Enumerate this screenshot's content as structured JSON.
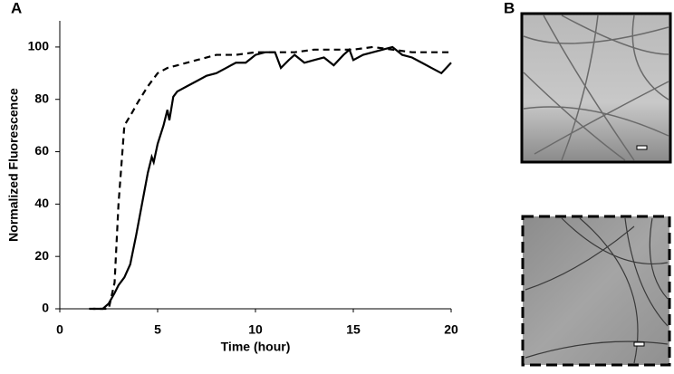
{
  "panel_labels": {
    "a": "A",
    "b": "B"
  },
  "chart_data": {
    "type": "line",
    "xlabel": "Time (hour)",
    "ylabel": "Normalized Fluorescence",
    "xlim": [
      0,
      20
    ],
    "xticks": [
      0,
      5,
      10,
      15,
      20
    ],
    "ylim": [
      0,
      110
    ],
    "yticks": [
      0,
      20,
      40,
      60,
      80,
      100
    ],
    "grid": false,
    "series": [
      {
        "color": "#000000",
        "style": "solid",
        "x": [
          1.7,
          2.2,
          2.5,
          2.8,
          3.0,
          3.3,
          3.6,
          3.9,
          4.2,
          4.5,
          4.7,
          4.8,
          5.0,
          5.3,
          5.5,
          5.6,
          5.8,
          6.0,
          6.5,
          7.0,
          7.5,
          8.0,
          8.5,
          9.0,
          9.5,
          10.0,
          10.5,
          11.0,
          11.3,
          11.7,
          12.0,
          12.5,
          13.0,
          13.5,
          14.0,
          14.5,
          14.8,
          15.0,
          15.5,
          16.0,
          16.5,
          17.0,
          17.5,
          18.0,
          18.5,
          19.0,
          19.5,
          20.0
        ],
        "values": [
          0,
          0,
          2,
          6,
          9,
          12,
          17,
          28,
          40,
          52,
          58,
          56,
          63,
          70,
          76,
          72,
          81,
          83,
          85,
          87,
          89,
          90,
          92,
          94,
          94,
          97,
          98,
          98,
          92,
          95,
          97,
          94,
          95,
          96,
          93,
          97,
          99,
          95,
          97,
          98,
          99,
          100,
          97,
          96,
          94,
          92,
          90,
          94
        ]
      },
      {
        "color": "#000000",
        "style": "dashed",
        "x": [
          1.5,
          2.5,
          2.8,
          3.0,
          3.3,
          3.7,
          4.0,
          4.5,
          5.0,
          5.5,
          6.0,
          7.0,
          8.0,
          9.0,
          10.0,
          11.0,
          12.0,
          13.0,
          14.0,
          15.0,
          16.0,
          17.0,
          18.0,
          19.0,
          20.0
        ],
        "values": [
          0,
          0,
          10,
          40,
          70,
          75,
          79,
          85,
          90,
          92,
          93,
          95,
          97,
          97,
          98,
          98,
          98,
          99,
          99,
          99,
          100,
          99,
          98,
          98,
          98
        ]
      }
    ]
  }
}
